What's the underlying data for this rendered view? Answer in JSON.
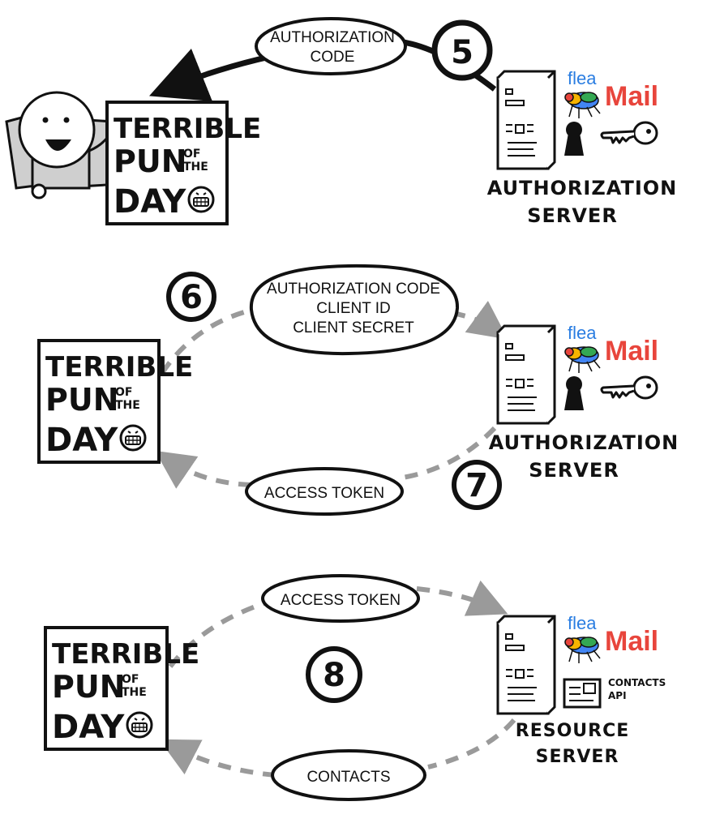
{
  "panel1": {
    "message": [
      "AUTHORIZATION",
      "CODE"
    ],
    "step": "5",
    "pun": [
      "TERRIBLE",
      "PUN",
      "OF",
      "THE",
      "DAY"
    ],
    "server": [
      "AUTHORIZATION",
      "SERVER"
    ],
    "brand": {
      "flea": "flea",
      "mail": "Mail"
    }
  },
  "panel2": {
    "request": [
      "AUTHORIZATION CODE",
      "CLIENT ID",
      "CLIENT SECRET"
    ],
    "step_request": "6",
    "response": "ACCESS TOKEN",
    "step_response": "7",
    "pun": [
      "TERRIBLE",
      "PUN",
      "OF",
      "THE",
      "DAY"
    ],
    "server": [
      "AUTHORIZATION",
      "SERVER"
    ],
    "brand": {
      "flea": "flea",
      "mail": "Mail"
    }
  },
  "panel3": {
    "request": "ACCESS TOKEN",
    "step": "8",
    "response": "CONTACTS",
    "pun": [
      "TERRIBLE",
      "PUN",
      "OF",
      "THE",
      "DAY"
    ],
    "server": [
      "RESOURCE",
      "SERVER"
    ],
    "api_label": [
      "CONTACTS",
      "API"
    ],
    "brand": {
      "flea": "flea",
      "mail": "Mail"
    }
  },
  "colors": {
    "ink": "#111111",
    "dash": "#9a9a9a",
    "mail_red": "#e8453c",
    "mail_blue": "#4285f4",
    "mail_yellow": "#f6b400",
    "mail_green": "#34a853",
    "chair": "#cfcfcf"
  }
}
